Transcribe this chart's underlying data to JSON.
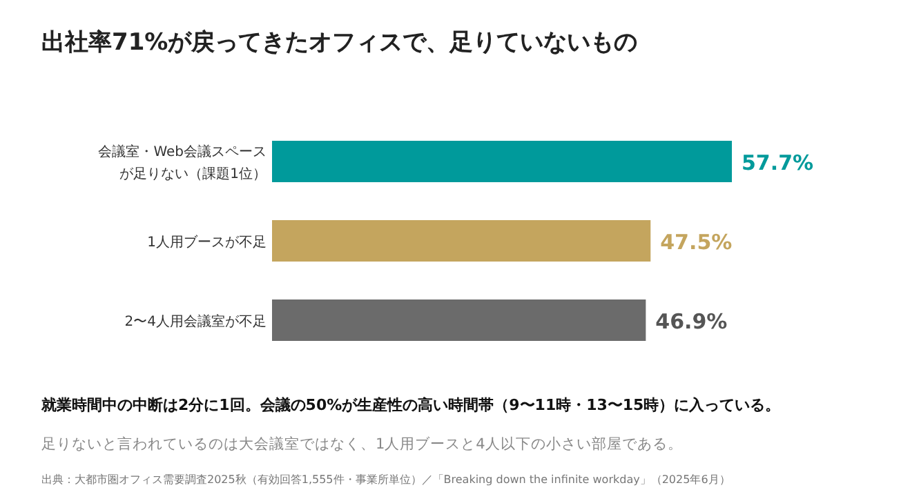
{
  "chart_data": {
    "type": "bar",
    "orientation": "horizontal",
    "title": "出社率71%が戻ってきたオフィスで、足りていないもの",
    "categories": [
      "会議室・Web会議スペースが足りない（課題1位）",
      "1人用ブースが不足",
      "2〜4人用会議室が不足"
    ],
    "values": [
      57.7,
      47.5,
      46.9
    ],
    "colors": [
      "#009a9b",
      "#c4a55e",
      "#6b6b6b"
    ],
    "value_labels": [
      "57.7%",
      "47.5%",
      "46.9%"
    ],
    "annotations": [
      "就業時間中の中断は2分に1回。会議の50%が生産性の高い時間帯（9〜11時・13〜15時）に入っている。",
      "足りないと言われているのは大会議室ではなく、1人用ブースと4人以下の小さい部屋である。",
      "出典：大都市圏オフィス需要調査2025秋（有効回答1,555件・事業所単位）／「Breaking down the infinite workday」（2025年6月）"
    ],
    "xlim": [
      0,
      57.7
    ]
  }
}
